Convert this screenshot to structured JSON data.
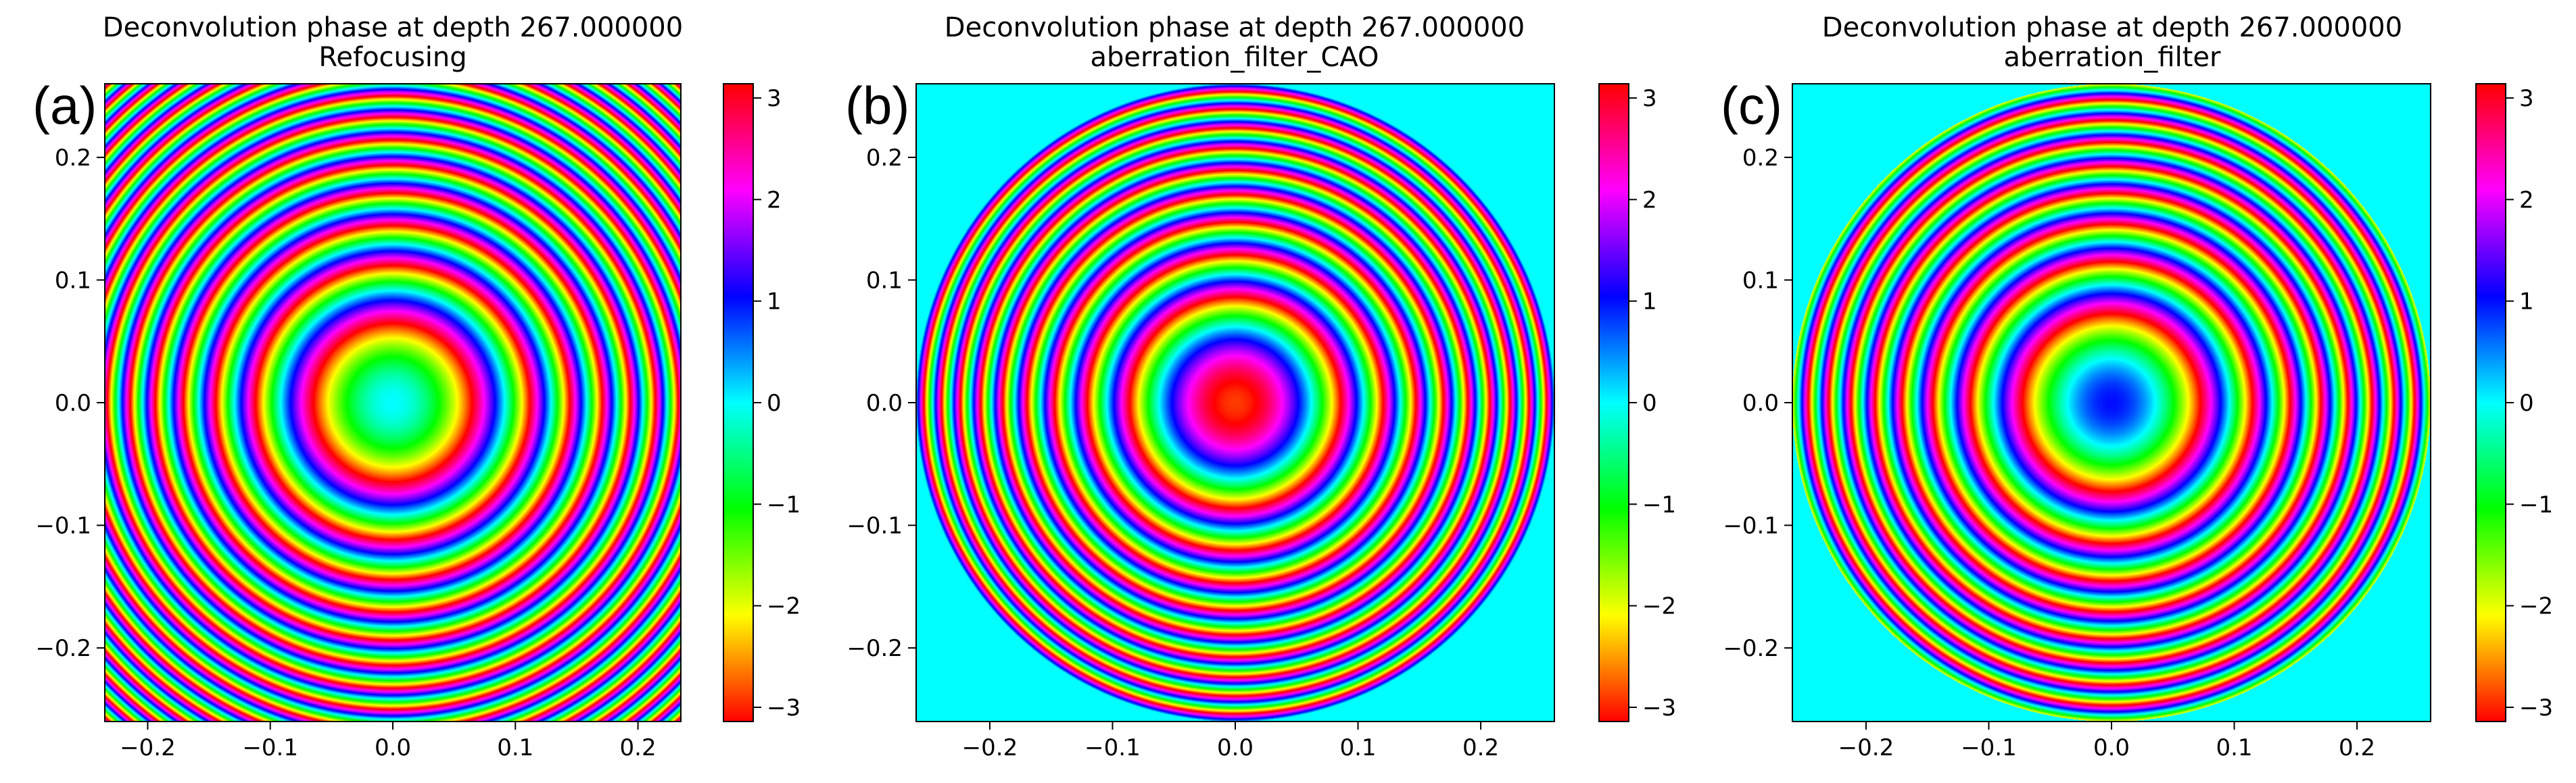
{
  "figure": {
    "panels": [
      {
        "label": "(a)",
        "title_line1": "Deconvolution phase at depth 267.000000",
        "title_line2": "Refocusing"
      },
      {
        "label": "(b)",
        "title_line1": "Deconvolution phase at depth 267.000000",
        "title_line2": "aberration_filter_CAO"
      },
      {
        "label": "(c)",
        "title_line1": "Deconvolution phase at depth 267.000000",
        "title_line2": "aberration_filter"
      }
    ],
    "colors": {
      "background_outside_pupil": "#00ffff",
      "colormap": "hsv"
    }
  },
  "chart_data": [
    {
      "type": "heatmap",
      "title": "Deconvolution phase at depth 267.000000\nRefocusing",
      "xlim": [
        -0.235,
        0.235
      ],
      "ylim": [
        -0.26,
        0.26
      ],
      "x_ticks": [
        -0.2,
        -0.1,
        0.0,
        0.1,
        0.2
      ],
      "x_tick_labels": [
        "−0.2",
        "−0.1",
        "0.0",
        "0.1",
        "0.2"
      ],
      "y_ticks": [
        0.2,
        0.1,
        0.0,
        -0.1,
        -0.2
      ],
      "y_tick_labels": [
        "0.2",
        "0.1",
        "0.0",
        "−0.1",
        "−0.2"
      ],
      "colorbar": {
        "colormap": "hsv",
        "range": [
          -3.14,
          3.14
        ],
        "ticks": [
          3,
          2,
          1,
          0,
          -1,
          -2,
          -3
        ],
        "tick_labels": [
          "3",
          "2",
          "1",
          "0",
          "−1",
          "−2",
          "−3"
        ]
      },
      "phase_model": {
        "center_phase": 0.0,
        "pupil_radius": null,
        "rings_to_edge": 7.5
      }
    },
    {
      "type": "heatmap",
      "title": "Deconvolution phase at depth 267.000000\naberration_filter_CAO",
      "xlim": [
        -0.26,
        0.26
      ],
      "ylim": [
        -0.26,
        0.26
      ],
      "x_ticks": [
        -0.2,
        -0.1,
        0.0,
        0.1,
        0.2
      ],
      "x_tick_labels": [
        "−0.2",
        "−0.1",
        "0.0",
        "0.1",
        "0.2"
      ],
      "y_ticks": [
        0.2,
        0.1,
        0.0,
        -0.1,
        -0.2
      ],
      "y_tick_labels": [
        "0.2",
        "0.1",
        "0.0",
        "−0.1",
        "−0.2"
      ],
      "colorbar": {
        "colormap": "hsv",
        "range": [
          -3.14,
          3.14
        ],
        "ticks": [
          3,
          2,
          1,
          0,
          -1,
          -2,
          -3
        ],
        "tick_labels": [
          "3",
          "2",
          "1",
          "0",
          "−1",
          "−2",
          "−3"
        ]
      },
      "phase_model": {
        "center_phase": -2.9,
        "pupil_radius": 0.26,
        "rings_to_edge": 9.5
      }
    },
    {
      "type": "heatmap",
      "title": "Deconvolution phase at depth 267.000000\naberration_filter",
      "xlim": [
        -0.26,
        0.26
      ],
      "ylim": [
        -0.26,
        0.26
      ],
      "x_ticks": [
        -0.2,
        -0.1,
        0.0,
        0.1,
        0.2
      ],
      "x_tick_labels": [
        "−0.2",
        "−0.1",
        "0.0",
        "0.1",
        "0.2"
      ],
      "y_ticks": [
        0.2,
        0.1,
        0.0,
        -0.1,
        -0.2
      ],
      "y_tick_labels": [
        "0.2",
        "0.1",
        "0.0",
        "−0.1",
        "−0.2"
      ],
      "colorbar": {
        "colormap": "hsv",
        "range": [
          -3.14,
          3.14
        ],
        "ticks": [
          3,
          2,
          1,
          0,
          -1,
          -2,
          -3
        ],
        "tick_labels": [
          "3",
          "2",
          "1",
          "0",
          "−1",
          "−2",
          "−3"
        ]
      },
      "phase_model": {
        "center_phase": 1.0,
        "pupil_radius": 0.26,
        "rings_to_edge": 8.5
      }
    }
  ]
}
